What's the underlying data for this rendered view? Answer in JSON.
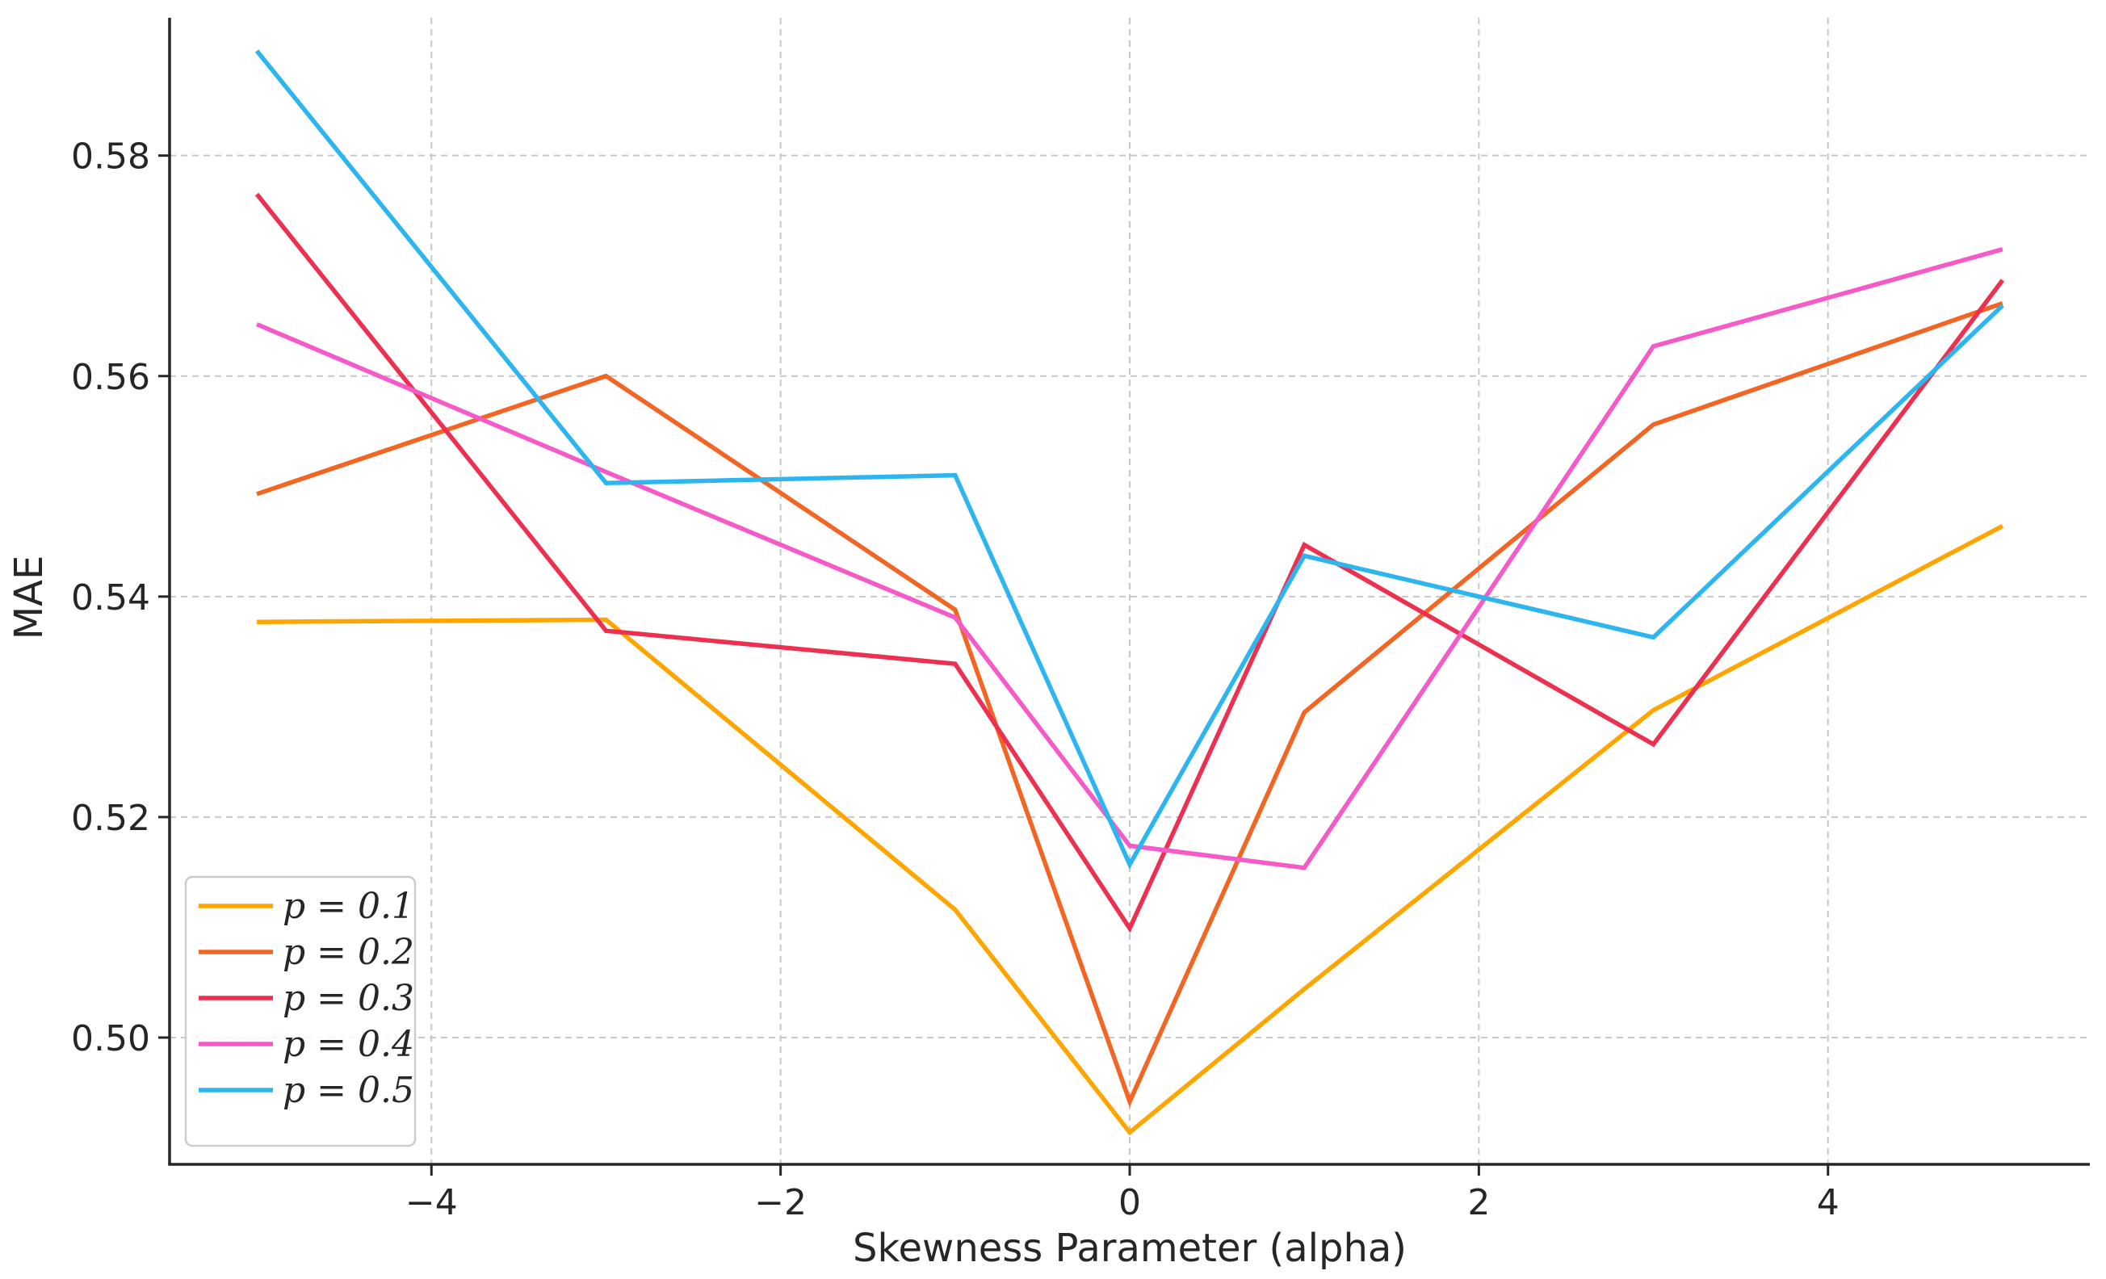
{
  "chart_data": {
    "type": "line",
    "title": "",
    "xlabel": "Skewness Parameter (alpha)",
    "ylabel": "MAE",
    "x": [
      -5,
      -3,
      -1,
      0,
      1,
      3,
      5
    ],
    "xlim": [
      -5.5,
      5.5
    ],
    "ylim": [
      0.4885,
      0.5925
    ],
    "xticks": [
      -4,
      -2,
      0,
      2,
      4
    ],
    "xtick_labels": [
      "−4",
      "−2",
      "0",
      "2",
      "4"
    ],
    "yticks": [
      0.5,
      0.52,
      0.54,
      0.56,
      0.58
    ],
    "ytick_labels": [
      "0.50",
      "0.52",
      "0.54",
      "0.56",
      "0.58"
    ],
    "grid": true,
    "legend_position": "bottom-left",
    "series": [
      {
        "name": "p = 0.1",
        "color": "#FFA500",
        "values": [
          0.5377,
          0.5379,
          0.5116,
          0.4914,
          0.5044,
          0.5297,
          0.5464
        ]
      },
      {
        "name": "p = 0.2",
        "color": "#F26522",
        "values": [
          0.5493,
          0.56,
          0.5388,
          0.4942,
          0.5295,
          0.5556,
          0.5666
        ]
      },
      {
        "name": "p = 0.3",
        "color": "#EE3050",
        "values": [
          0.5765,
          0.5369,
          0.5339,
          0.5099,
          0.5447,
          0.5266,
          0.5687
        ]
      },
      {
        "name": "p = 0.4",
        "color": "#F55AC8",
        "values": [
          0.5647,
          0.5513,
          0.5381,
          0.5174,
          0.5154,
          0.5627,
          0.5715
        ]
      },
      {
        "name": "p = 0.5",
        "color": "#2DB5F0",
        "values": [
          0.5895,
          0.5503,
          0.551,
          0.5157,
          0.5437,
          0.5363,
          0.5664
        ]
      }
    ]
  }
}
